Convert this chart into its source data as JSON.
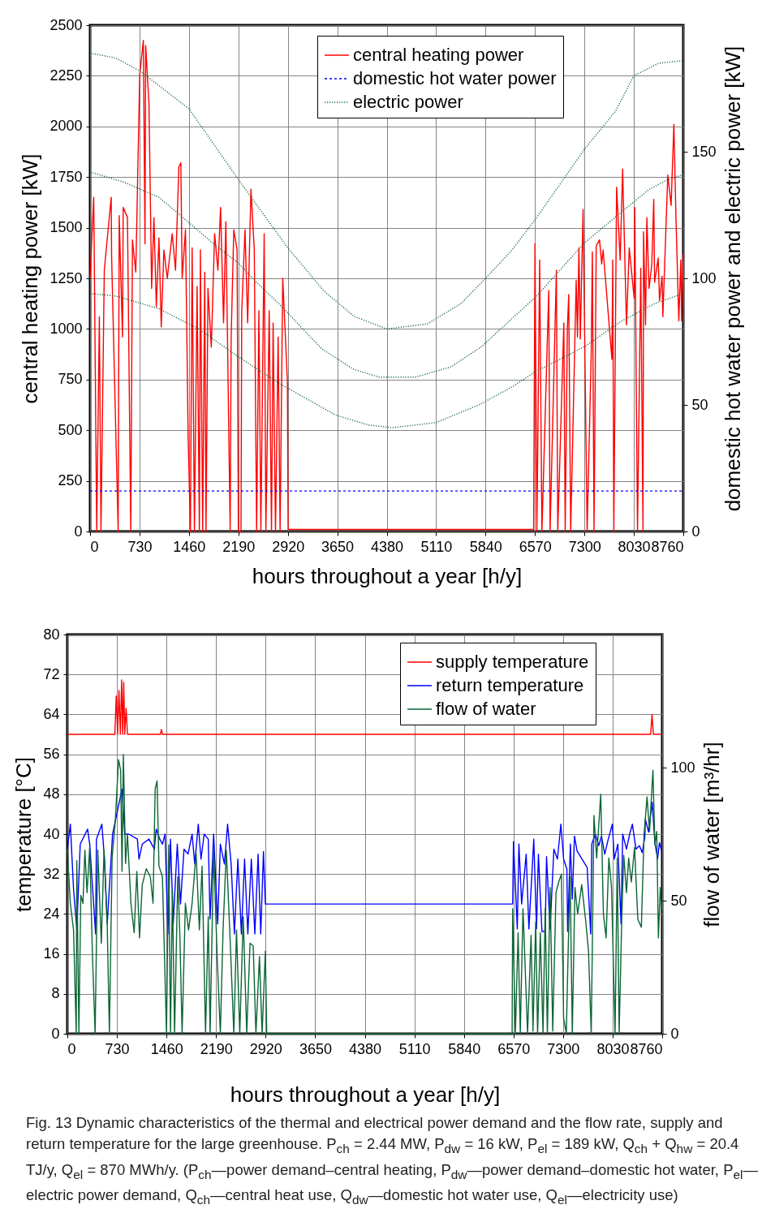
{
  "chart_data": [
    {
      "type": "line",
      "xlabel": "hours throughout a year [h/y]",
      "ylabel": "central heating power [kW]",
      "y2label": "domestic hot water power and electric power [kW]",
      "xlim": [
        0,
        8760
      ],
      "xticks": [
        0,
        730,
        1460,
        2190,
        2920,
        3650,
        4380,
        5110,
        5840,
        6570,
        7300,
        8030,
        8760
      ],
      "ylim": [
        0,
        2500
      ],
      "yticks": [
        0,
        250,
        500,
        750,
        1000,
        1250,
        1500,
        1750,
        2000,
        2250,
        2500
      ],
      "y2lim": [
        0,
        200
      ],
      "y2ticks": [
        0,
        50,
        100,
        150
      ],
      "grid": true,
      "legend": "top right",
      "marker": "none",
      "series": [
        {
          "name": "central heating power",
          "color": "#ff0000",
          "line_style": "solid",
          "x": [
            0,
            54,
            98,
            137,
            161,
            210,
            312,
            318,
            415,
            430,
            479,
            489,
            552,
            601,
            626,
            675,
            733,
            787,
            811,
            821,
            870,
            909,
            943,
            978,
            1017,
            1051,
            1090,
            1140,
            1213,
            1262,
            1311,
            1340,
            1360,
            1409,
            1448,
            1482,
            1507,
            1541,
            1580,
            1614,
            1629,
            1663,
            1693,
            1712,
            1741,
            1790,
            1839,
            1888,
            1927,
            1971,
            2005,
            2069,
            2083,
            2122,
            2171,
            2190,
            2229,
            2239,
            2288,
            2327,
            2376,
            2425,
            2459,
            2493,
            2522,
            2571,
            2596,
            2645,
            2679,
            2703,
            2738,
            2777,
            2806,
            2845,
            2875,
            2914,
            2924,
            6550,
            6570,
            6598,
            6639,
            6672,
            6773,
            6793,
            6886,
            6906,
            6996,
            7016,
            7048,
            7068,
            7097,
            7178,
            7198,
            7219,
            7239,
            7280,
            7340,
            7401,
            7417,
            7442,
            7474,
            7523,
            7555,
            7576,
            7706,
            7718,
            7734,
            7775,
            7828,
            7864,
            7921,
            7962,
            8035,
            8043,
            8084,
            8132,
            8165,
            8173,
            8202,
            8222,
            8254,
            8295,
            8324,
            8336,
            8389,
            8409,
            8446,
            8458,
            8531,
            8580,
            8621,
            8653,
            8694,
            8723,
            8735,
            8760
          ],
          "values": [
            1250,
            1650,
            0,
            1060,
            0,
            1290,
            1650,
            1356,
            0,
            1560,
            960,
            1600,
            1550,
            0,
            1440,
            1280,
            2255,
            2425,
            1420,
            2400,
            2110,
            1200,
            1550,
            1110,
            1450,
            1010,
            1390,
            1250,
            1470,
            1290,
            1800,
            1820,
            1250,
            1490,
            470,
            0,
            1400,
            0,
            1210,
            0,
            1390,
            0,
            1280,
            0,
            1200,
            910,
            1470,
            1290,
            1600,
            1030,
            1530,
            0,
            950,
            1490,
            1390,
            0,
            0,
            1080,
            1490,
            1030,
            1690,
            1390,
            0,
            1090,
            0,
            1470,
            0,
            1090,
            0,
            1030,
            0,
            960,
            0,
            1250,
            1030,
            740,
            10,
            10,
            1420,
            0,
            1340,
            0,
            1190,
            0,
            1290,
            0,
            1030,
            0,
            1000,
            1170,
            0,
            1240,
            960,
            1400,
            950,
            1590,
            0,
            890,
            1380,
            0,
            1410,
            1440,
            1320,
            1390,
            850,
            1340,
            0,
            1700,
            1340,
            1790,
            1020,
            1400,
            1150,
            1600,
            0,
            1300,
            0,
            1480,
            1020,
            1550,
            1200,
            1320,
            1640,
            1230,
            1350,
            1140,
            1260,
            1060,
            1760,
            1610,
            2010,
            1530,
            1040,
            1340,
            1040,
            1370
          ]
        },
        {
          "name": "domestic hot water power",
          "color": "#0000ff",
          "line_style": "dashed",
          "axis": "y2",
          "x": [
            0,
            8760
          ],
          "values": [
            16,
            16
          ]
        },
        {
          "name": "electric power",
          "color": "#1e6b45",
          "line_style": "dotted",
          "axis": "y2",
          "x": [
            0,
            380,
            730,
            1460,
            2190,
            2920,
            3453,
            3897,
            4380,
            4686,
            4982,
            5475,
            5840,
            6225,
            6595,
            7300,
            7759,
            8030,
            8400,
            8760
          ],
          "values": [
            189,
            187,
            182,
            167,
            139,
            112,
            95,
            85,
            80,
            81,
            82,
            90,
            100,
            111,
            124,
            151,
            166,
            180,
            185,
            186
          ]
        },
        {
          "color": "#1e6b45",
          "line_style": "dotted",
          "axis": "y2",
          "x": [
            0,
            500,
            1017,
            1460,
            1851,
            2190,
            2435,
            2826,
            3246,
            3429,
            3897,
            4266,
            4810,
            5327,
            5781,
            6225,
            6595,
            7300,
            7840,
            8247,
            8531,
            8760
          ],
          "values": [
            142,
            138,
            132,
            122,
            113,
            106,
            99,
            89,
            77,
            72,
            64,
            61,
            61,
            65,
            73,
            84,
            93,
            114,
            126,
            135,
            139,
            141
          ]
        },
        {
          "color": "#1e6b45",
          "line_style": "dotted",
          "axis": "y2",
          "x": [
            0,
            380,
            1017,
            1602,
            2190,
            2826,
            3625,
            4119,
            4464,
            5105,
            5742,
            6225,
            6570,
            7300,
            7840,
            8336,
            8760
          ],
          "values": [
            94,
            93,
            88,
            80,
            69,
            58,
            46,
            42,
            41,
            43,
            50,
            57,
            63,
            73,
            83,
            90,
            94
          ]
        }
      ]
    },
    {
      "type": "line",
      "xlabel": "hours throughout a year [h/y]",
      "ylabel": "temperature [°C]",
      "y2label": "flow of water [m³/hr]",
      "xlim": [
        0,
        8760
      ],
      "xticks": [
        0,
        730,
        1460,
        2190,
        2920,
        3650,
        4380,
        5110,
        5840,
        6570,
        7300,
        8030,
        8760
      ],
      "ylim": [
        0,
        80
      ],
      "yticks": [
        0,
        8,
        16,
        24,
        32,
        40,
        48,
        56,
        64,
        72,
        80
      ],
      "y2lim": [
        0,
        150
      ],
      "y2ticks": [
        0,
        50,
        100
      ],
      "grid": true,
      "legend": "top right",
      "marker": "none",
      "annotations": [
        "Fig. 13  Dynamic characteristics of the thermal and electrical power demand and the flow rate, supply and return temperature for the large greenhouse. P$_{ch}$ = 2.44 MW, P$_{dw}$ = 16 kW, P$_{el}$ = 189 kW, Q$_{ch}$ + Q$_{hw}$ = 20.4 TJ/y, Q$_{el}$ = 870 MWh/y. (P$_{ch}$—power demand–central heating, P$_{dw}$—power demand–domestic hot water, P$_{el}$—electric power demand, Q$_{ch}$—central heat use, Q$_{dw}$—domestic hot water use, Q$_{el}$—electricity use)"
      ],
      "series": [
        {
          "name": "supply temperature",
          "color": "#ff0000",
          "line_style": "solid",
          "x": [
            0,
            700,
            720,
            740,
            760,
            780,
            800,
            815,
            830,
            845,
            865,
            885,
            1370,
            1385,
            1400,
            8590,
            8610,
            8630,
            8760
          ],
          "values": [
            60,
            60,
            67.7,
            60,
            68.8,
            60,
            70.9,
            60,
            70.4,
            60,
            65.2,
            60,
            60,
            61,
            60,
            60,
            64,
            60,
            60
          ]
        },
        {
          "name": "return temperature",
          "color": "#0000ff",
          "line_style": "solid",
          "x": [
            0,
            44,
            91,
            139,
            190,
            298,
            329,
            416,
            428,
            508,
            547,
            587,
            666,
            805,
            845,
            904,
            1031,
            1055,
            1103,
            1202,
            1281,
            1309,
            1361,
            1400,
            1440,
            1480,
            1519,
            1559,
            1619,
            1666,
            1718,
            1777,
            1837,
            1876,
            1928,
            1968,
            2015,
            2075,
            2102,
            2154,
            2214,
            2253,
            2313,
            2360,
            2412,
            2460,
            2511,
            2563,
            2610,
            2658,
            2709,
            2761,
            2809,
            2848,
            2888,
            2916,
            6558,
            6570,
            6626,
            6650,
            6690,
            6757,
            6797,
            6869,
            6909,
            6937,
            6989,
            7037,
            7057,
            7109,
            7165,
            7217,
            7268,
            7308,
            7356,
            7368,
            7408,
            7436,
            7468,
            7507,
            7655,
            7707,
            7723,
            7775,
            7826,
            7866,
            7914,
            7962,
            8026,
            8054,
            8106,
            8154,
            8178,
            8234,
            8281,
            8321,
            8373,
            8425,
            8465,
            8504,
            8512,
            8560,
            8612,
            8652,
            8692,
            8720,
            8752
          ],
          "values": [
            37,
            42,
            29,
            21,
            38,
            41,
            38,
            20,
            39,
            42,
            35,
            22,
            40,
            49,
            40,
            40,
            39,
            35,
            38,
            39,
            37,
            41,
            39,
            38,
            40,
            20,
            39,
            22,
            38,
            26,
            37,
            36,
            40,
            34,
            42,
            35,
            40,
            39,
            23,
            40,
            22,
            38,
            34,
            42,
            34,
            20,
            35,
            20,
            35,
            20,
            35,
            20,
            36,
            20,
            36.5,
            26,
            26,
            38.5,
            21,
            38,
            26,
            36,
            21,
            39,
            21,
            36,
            20.5,
            20.5,
            35.5,
            21,
            37,
            35,
            42,
            35,
            33,
            20.5,
            38,
            27,
            39.6,
            36.6,
            33.3,
            20,
            38,
            40,
            37.7,
            39.6,
            36,
            38.8,
            42,
            35,
            38,
            22,
            40,
            37,
            40,
            42,
            37,
            37.7,
            36.3,
            39.3,
            43,
            40.4,
            46.4,
            38.3,
            35,
            38.3,
            36.6
          ]
        },
        {
          "name": "flow of water",
          "color": "#0b6635",
          "line_style": "solid",
          "axis": "y2",
          "x": [
            0,
            44,
            91,
            131,
            139,
            170,
            198,
            230,
            258,
            290,
            329,
            369,
            409,
            448,
            500,
            540,
            587,
            619,
            659,
            706,
            754,
            785,
            805,
            825,
            857,
            885,
            936,
            984,
            1023,
            1063,
            1103,
            1162,
            1222,
            1262,
            1293,
            1321,
            1349,
            1400,
            1460,
            1492,
            1519,
            1547,
            1579,
            1626,
            1658,
            1690,
            1738,
            1785,
            1837,
            1896,
            1944,
            1984,
            2035,
            2075,
            2102,
            2154,
            2206,
            2253,
            2293,
            2341,
            2404,
            2452,
            2491,
            2539,
            2590,
            2642,
            2690,
            2737,
            2777,
            2829,
            2868,
            2916,
            2936,
            6550,
            6558,
            6598,
            6638,
            6670,
            6710,
            6738,
            6777,
            6829,
            6857,
            6897,
            6925,
            6965,
            7005,
            7037,
            7069,
            7109,
            7148,
            7196,
            7236,
            7276,
            7308,
            7348,
            7376,
            7404,
            7436,
            7475,
            7515,
            7575,
            7635,
            7675,
            7715,
            7755,
            7795,
            7855,
            7894,
            7934,
            7974,
            8014,
            8066,
            8098,
            8126,
            8166,
            8194,
            8234,
            8266,
            8305,
            8353,
            8401,
            8453,
            8493,
            8537,
            8573,
            8624,
            8652,
            8680,
            8704,
            8732,
            8752
          ],
          "values": [
            69,
            49,
            39,
            0,
            65,
            0,
            52,
            49,
            69,
            53,
            70,
            30,
            0,
            69,
            34,
            69,
            41,
            0,
            66,
            80,
            103,
            99,
            61,
            105,
            64,
            75,
            49,
            38,
            61,
            36,
            56,
            62,
            59,
            49,
            92,
            95,
            63,
            59,
            0,
            71,
            0,
            54,
            0,
            59,
            36,
            0,
            49,
            39,
            49,
            68,
            39,
            63,
            0,
            44,
            0,
            69,
            29,
            0,
            39,
            69,
            31,
            0,
            39,
            0,
            44,
            0,
            34,
            33,
            0,
            29,
            0,
            31,
            0,
            0,
            47,
            0,
            38,
            0,
            47,
            28,
            0,
            37,
            1,
            42,
            0,
            38,
            0,
            47,
            0,
            55,
            1,
            53,
            57,
            60,
            6,
            0,
            32,
            59,
            0,
            55,
            45,
            56,
            42,
            31,
            0,
            82,
            66,
            90,
            45,
            36,
            66,
            55,
            0,
            66,
            0,
            45,
            67,
            53,
            66,
            57,
            70,
            43,
            40,
            75,
            89,
            76,
            99,
            71,
            76,
            36,
            55,
            47
          ]
        }
      ]
    }
  ]
}
